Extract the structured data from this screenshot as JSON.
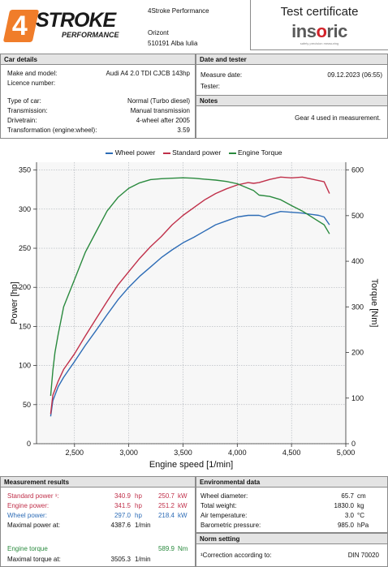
{
  "logo": {
    "big": "STROKE",
    "small": "PERFORMANCE",
    "digit": "4"
  },
  "company": {
    "name": "4Stroke Performance",
    "line2": "Orizont",
    "line3": "510191 Alba Iulia"
  },
  "certificate": {
    "title": "Test certificate",
    "brand_a": "ins",
    "brand_o": "o",
    "brand_b": "ric",
    "tagline": "safety precision measuring"
  },
  "car_details": {
    "heading": "Car details",
    "make_label": "Make and model:",
    "make_value": "Audi A4 2.0 TDI CJCB 143hp",
    "licence_label": "Licence number:",
    "licence_value": "",
    "type_label": "Type of car:",
    "type_value": "Normal (Turbo diesel)",
    "transmission_label": "Transmission:",
    "transmission_value": "Manual transmission",
    "drivetrain_label": "Drivetrain:",
    "drivetrain_value": "4-wheel after 2005",
    "ratio_label": "Transformation (engine:wheel):",
    "ratio_value": "3.59"
  },
  "date_tester": {
    "heading": "Date and tester",
    "date_label": "Measure date:",
    "date_value": "09.12.2023 (06:55)",
    "tester_label": "Tester:",
    "tester_value": ""
  },
  "notes": {
    "heading": "Notes",
    "text": "Gear 4 used in measurement."
  },
  "chart_data": {
    "type": "line",
    "xlabel": "Engine speed [1/min]",
    "ylabel": "Power [hp]",
    "ylabel_right": "Torque [Nm]",
    "xlim": [
      2150,
      5000
    ],
    "ylim": [
      0,
      360
    ],
    "ylim_right": [
      0,
      617.1
    ],
    "x_ticks": [
      2500,
      3000,
      3500,
      4000,
      4500,
      5000
    ],
    "x_tick_labels": [
      "2,500",
      "3,000",
      "3,500",
      "4,000",
      "4,500",
      "5,000"
    ],
    "y_ticks": [
      0,
      50,
      100,
      150,
      200,
      250,
      300,
      350
    ],
    "y_ticks_right": [
      0,
      100,
      200,
      300,
      400,
      500,
      600
    ],
    "grid": true,
    "legend_position": "top",
    "series": [
      {
        "name": "Wheel power",
        "color": "#2d6cb6",
        "axis": "left",
        "x": [
          2280,
          2300,
          2350,
          2400,
          2450,
          2500,
          2600,
          2700,
          2800,
          2900,
          3000,
          3100,
          3200,
          3300,
          3400,
          3500,
          3600,
          3700,
          3800,
          3900,
          4000,
          4100,
          4200,
          4250,
          4300,
          4400,
          4500,
          4600,
          4700,
          4750,
          4800,
          4850
        ],
        "values": [
          35,
          55,
          73,
          85,
          95,
          105,
          126,
          145,
          165,
          184,
          200,
          214,
          226,
          238,
          248,
          257,
          264,
          272,
          280,
          285,
          290,
          292,
          292,
          290,
          293,
          297,
          296,
          295,
          293,
          292,
          290,
          280
        ]
      },
      {
        "name": "Standard power",
        "color": "#c0304a",
        "axis": "left",
        "x": [
          2280,
          2300,
          2350,
          2400,
          2450,
          2500,
          2600,
          2700,
          2800,
          2900,
          3000,
          3100,
          3200,
          3300,
          3400,
          3500,
          3600,
          3700,
          3800,
          3900,
          4000,
          4100,
          4150,
          4200,
          4300,
          4400,
          4500,
          4600,
          4700,
          4800,
          4850
        ],
        "values": [
          38,
          62,
          80,
          95,
          105,
          115,
          138,
          160,
          182,
          203,
          220,
          237,
          252,
          265,
          280,
          292,
          302,
          312,
          320,
          326,
          331,
          334,
          333,
          334,
          338,
          341,
          340,
          341,
          338,
          335,
          320
        ]
      },
      {
        "name": "Engine Torque",
        "color": "#2a8a3e",
        "axis": "right",
        "x": [
          2280,
          2300,
          2320,
          2350,
          2400,
          2450,
          2500,
          2600,
          2700,
          2800,
          2900,
          3000,
          3100,
          3200,
          3300,
          3400,
          3500,
          3600,
          3700,
          3800,
          3900,
          4000,
          4100,
          4150,
          4200,
          4300,
          4400,
          4500,
          4600,
          4700,
          4800,
          4850
        ],
        "values": [
          105,
          160,
          200,
          240,
          300,
          330,
          360,
          420,
          465,
          510,
          540,
          560,
          572,
          579,
          581,
          582,
          583,
          582,
          580,
          578,
          575,
          570,
          560,
          555,
          545,
          542,
          535,
          522,
          510,
          495,
          480,
          460
        ]
      }
    ]
  },
  "measurement_results": {
    "heading": "Measurement results",
    "standard_label": "Standard power ¹:",
    "standard_hp": "340.9",
    "standard_kw": "250.7",
    "engine_label": "Engine power:",
    "engine_hp": "341.5",
    "engine_kw": "251.2",
    "wheel_label": "Wheel power:",
    "wheel_hp": "297.0",
    "wheel_kw": "218.4",
    "max_power_label": "Maximal power at:",
    "max_power_value": "4387.6",
    "torque_label": "Engine torque",
    "torque_value": "589.9",
    "max_torque_label": "Maximal torque at:",
    "max_torque_value": "3505.3",
    "unit_hp": "hp",
    "unit_kw": "kW",
    "unit_rpm": "1/min",
    "unit_nm": "Nm"
  },
  "environmental": {
    "heading": "Environmental data",
    "diameter_label": "Wheel diameter:",
    "diameter_value": "65.7",
    "diameter_unit": "cm",
    "weight_label": "Total weight:",
    "weight_value": "1830.0",
    "weight_unit": "kg",
    "air_label": "Air temperature:",
    "air_value": "3.0",
    "air_unit": "°C",
    "baro_label": "Barometric pressure:",
    "baro_value": "985.0",
    "baro_unit": "hPa"
  },
  "norm": {
    "heading": "Norm setting",
    "label": "¹Correction according to:",
    "value": "DIN 70020"
  }
}
